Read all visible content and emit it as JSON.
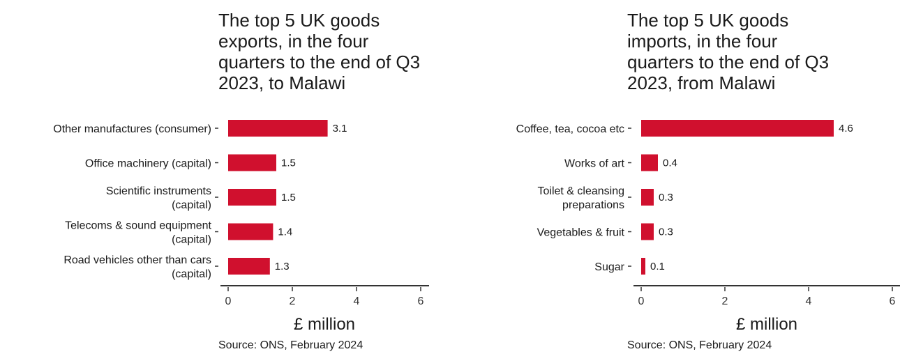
{
  "chart_data": [
    {
      "type": "bar",
      "orientation": "horizontal",
      "title": "The top 5 UK goods\nexports, in the four\nquarters to the end of Q3\n2023, to Malawi",
      "categories": [
        [
          "Other manufactures (consumer)"
        ],
        [
          "Office machinery (capital)"
        ],
        [
          "Scientific instruments",
          "(capital)"
        ],
        [
          "Telecoms & sound equipment",
          "(capital)"
        ],
        [
          "Road vehicles other than cars",
          "(capital)"
        ]
      ],
      "values": [
        3.1,
        1.5,
        1.5,
        1.4,
        1.3
      ],
      "value_labels": [
        "3.1",
        "1.5",
        "1.5",
        "1.4",
        "1.3"
      ],
      "xlabel": "£ million",
      "xlim": [
        0,
        6
      ],
      "xticks": [
        0,
        2,
        4,
        6
      ],
      "grid": false,
      "bar_color": "#d0102e",
      "source": "Source: ONS, February 2024"
    },
    {
      "type": "bar",
      "orientation": "horizontal",
      "title": "The top 5 UK goods\nimports, in the four\nquarters to the end of Q3\n2023, from Malawi",
      "categories": [
        [
          "Coffee, tea, cocoa etc"
        ],
        [
          "Works of art"
        ],
        [
          "Toilet & cleansing",
          "preparations"
        ],
        [
          "Vegetables & fruit"
        ],
        [
          "Sugar"
        ]
      ],
      "values": [
        4.6,
        0.4,
        0.3,
        0.3,
        0.1
      ],
      "value_labels": [
        "4.6",
        "0.4",
        "0.3",
        "0.3",
        "0.1"
      ],
      "xlabel": "£ million",
      "xlim": [
        0,
        6
      ],
      "xticks": [
        0,
        2,
        4,
        6
      ],
      "grid": false,
      "bar_color": "#d0102e",
      "source": "Source: ONS, February 2024"
    }
  ]
}
